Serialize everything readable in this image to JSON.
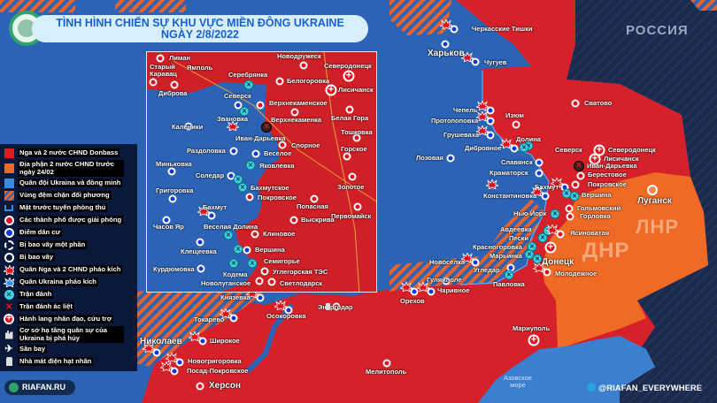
{
  "title": {
    "line1": "TÌNH HÌNH CHIẾN SỰ KHU VỰC MIỀN ĐÔNG UKRAINE",
    "line2": "NGÀY 2/8/2022"
  },
  "colors": {
    "russia_dnr_lnr": "#d7212a",
    "dnr_lnr_pre_2402": "#ef6a24",
    "ukraine": "#2c63b5",
    "russia_bg": "#1b2a4d",
    "sea": "#3a7fd0",
    "battle": "#3ed1e0"
  },
  "regions": {
    "russia": "РОССИЯ",
    "dnr": "ДНР",
    "lnr": "ЛНР"
  },
  "legend": [
    {
      "icon": "red-square-icon",
      "label": "Nga và 2 nước CHND Donbass"
    },
    {
      "icon": "orange-square-icon",
      "label": "Địa phận 2 nước CHND trước ngày 24/02"
    },
    {
      "icon": "blue-square-icon",
      "label": "Quân đội Ukraina và đồng minh"
    },
    {
      "icon": "hatch-icon",
      "label": "Vùng đệm chặn đối phương"
    },
    {
      "icon": "front-line-icon",
      "label": "Mặt trước tuyến phòng thủ"
    },
    {
      "icon": "red-dot-icon",
      "label": "Các thành phố được giải phóng"
    },
    {
      "icon": "blue-dot-icon",
      "label": "Điểm dân cư"
    },
    {
      "icon": "dashed-ring-icon",
      "label": "Bị bao vây một phần"
    },
    {
      "icon": "ring-icon",
      "label": "Bị bao vây"
    },
    {
      "icon": "russian-artillery-icon",
      "label": "Quân Nga và 2 CHND pháo kích"
    },
    {
      "icon": "ukrainian-artillery-icon",
      "label": "Quân Ukraina pháo kích"
    },
    {
      "icon": "battle-icon",
      "label": "Trận đánh"
    },
    {
      "icon": "heavy-battle-icon",
      "label": "Trận đánh ác liệt"
    },
    {
      "icon": "humanitarian-corridor-icon",
      "label": "Hành lang nhân đạo, cứu trợ"
    },
    {
      "icon": "destroyed-infrastructure-icon",
      "label": "Cơ sở hạ tầng quân sự của Ukraina bị phá hủy"
    },
    {
      "icon": "airport-icon",
      "label": "Sân bay"
    },
    {
      "icon": "nuclear-plant-icon",
      "label": "Nhà mát điện hạt nhân"
    }
  ],
  "places": [
    {
      "name": "Черкасские Тишки",
      "type": "ba"
    },
    {
      "name": "Харьков",
      "type": "b"
    },
    {
      "name": "Чугуев",
      "type": "ba"
    },
    {
      "name": "Чепель",
      "type": "ba"
    },
    {
      "name": "Протопоповка",
      "type": "ba"
    },
    {
      "name": "Изюм",
      "type": "r"
    },
    {
      "name": "Грушеваха",
      "type": "ba"
    },
    {
      "name": "Долина",
      "type": "x"
    },
    {
      "name": "Дибровное",
      "type": "ba"
    },
    {
      "name": "Лозовая",
      "type": "b"
    },
    {
      "name": "Славянск",
      "type": "b"
    },
    {
      "name": "Краматорск",
      "type": "b"
    },
    {
      "name": "Сватово",
      "type": "r"
    },
    {
      "name": "Северск",
      "type": "n"
    },
    {
      "name": "Северодонецк",
      "type": "p"
    },
    {
      "name": "Лисичанск",
      "type": "p"
    },
    {
      "name": "Иван-Дарьевка",
      "type": "X"
    },
    {
      "name": "Берестовое",
      "type": "r"
    },
    {
      "name": "Покровское",
      "type": "r"
    },
    {
      "name": "Бахмут",
      "type": "ba"
    },
    {
      "name": "Константиновка",
      "type": "ba"
    },
    {
      "name": "Вершина",
      "type": "x"
    },
    {
      "name": "Гольмовский",
      "type": "r"
    },
    {
      "name": "Горловка",
      "type": "r"
    },
    {
      "name": "Нью-Йорк",
      "type": "x"
    },
    {
      "name": "Авдеевка",
      "type": "x"
    },
    {
      "name": "Пески",
      "type": "x"
    },
    {
      "name": "Ясиноватая",
      "type": "ra"
    },
    {
      "name": "Красногоровка",
      "type": "x"
    },
    {
      "name": "Марьинка",
      "type": "x"
    },
    {
      "name": "Донецк",
      "type": "p"
    },
    {
      "name": "Молодежное",
      "type": "ra"
    },
    {
      "name": "Новоселка",
      "type": "ba"
    },
    {
      "name": "Угледар",
      "type": "b"
    },
    {
      "name": "Павловка",
      "type": "x"
    },
    {
      "name": "Гуляйполе",
      "type": "b"
    },
    {
      "name": "Чаривное",
      "type": "ba"
    },
    {
      "name": "Орехов",
      "type": "ba"
    },
    {
      "name": "Луганск",
      "type": "o"
    },
    {
      "name": "Энергодар",
      "type": "r"
    },
    {
      "name": "Осокоровка",
      "type": "ba"
    },
    {
      "name": "Князевка",
      "type": "ba"
    },
    {
      "name": "Токарево",
      "type": "ba"
    },
    {
      "name": "Николаев",
      "type": "ba"
    },
    {
      "name": "Широкое",
      "type": "ba"
    },
    {
      "name": "Новогригоровка",
      "type": "ba"
    },
    {
      "name": "Посад-Покровское",
      "type": "ba"
    },
    {
      "name": "Херсон",
      "type": "r"
    },
    {
      "name": "Мелитополь",
      "type": "r"
    },
    {
      "name": "Мариуполь",
      "type": "p"
    },
    {
      "name": "Азовское море",
      "type": "n"
    }
  ],
  "inset_places": [
    {
      "name": "Лиман",
      "type": "r"
    },
    {
      "name": "Новодружеск",
      "type": "r"
    },
    {
      "name": "Старый Каравац",
      "type": "r"
    },
    {
      "name": "Ямполь",
      "type": "r"
    },
    {
      "name": "Серебрянка",
      "type": "x"
    },
    {
      "name": "Северодонецк",
      "type": "p"
    },
    {
      "name": "Белогоровка",
      "type": "r"
    },
    {
      "name": "Лисичанск",
      "type": "p"
    },
    {
      "name": "Диброва",
      "type": "n"
    },
    {
      "name": "Северск",
      "type": "b"
    },
    {
      "name": "Верхнекаменское",
      "type": "r"
    },
    {
      "name": "Звановка",
      "type": "n"
    },
    {
      "name": "Верхнекаменка",
      "type": "r"
    },
    {
      "name": "Белая Гора",
      "type": "r"
    },
    {
      "name": "Каленики",
      "type": "b"
    },
    {
      "name": "Иван-Дарьевка",
      "type": "X"
    },
    {
      "name": "Тошковка",
      "type": "r"
    },
    {
      "name": "Спорное",
      "type": "r"
    },
    {
      "name": "Раздоловка",
      "type": "b"
    },
    {
      "name": "Веселое",
      "type": "b"
    },
    {
      "name": "Горское",
      "type": "r"
    },
    {
      "name": "Миньковка",
      "type": "b"
    },
    {
      "name": "Яковлевка",
      "type": "x"
    },
    {
      "name": "Соледар",
      "type": "b"
    },
    {
      "name": "Бахмутское",
      "type": "x"
    },
    {
      "name": "Григоровка",
      "type": "b"
    },
    {
      "name": "Покровское",
      "type": "r"
    },
    {
      "name": "Золотое",
      "type": "r"
    },
    {
      "name": "Попасная",
      "type": "r"
    },
    {
      "name": "Первомайск",
      "type": "r"
    },
    {
      "name": "Бахмут",
      "type": "ba"
    },
    {
      "name": "Выскрива",
      "type": "r"
    },
    {
      "name": "Часов Яр",
      "type": "b"
    },
    {
      "name": "Веселая Долина",
      "type": "x"
    },
    {
      "name": "Клиновое",
      "type": "r"
    },
    {
      "name": "Клещеевка",
      "type": "b"
    },
    {
      "name": "Вершина",
      "type": "b"
    },
    {
      "name": "Семигорье",
      "type": "x"
    },
    {
      "name": "Курдюмовка",
      "type": "b"
    },
    {
      "name": "Кодема",
      "type": "x"
    },
    {
      "name": "Углегорская ТЭС",
      "type": "r"
    },
    {
      "name": "Новолуганское",
      "type": "r"
    },
    {
      "name": "Светлодарск",
      "type": "r"
    }
  ],
  "footer": {
    "brand": "RIAFAN.RU",
    "telegram": "@RIAFAN_EVERYWHERE"
  }
}
